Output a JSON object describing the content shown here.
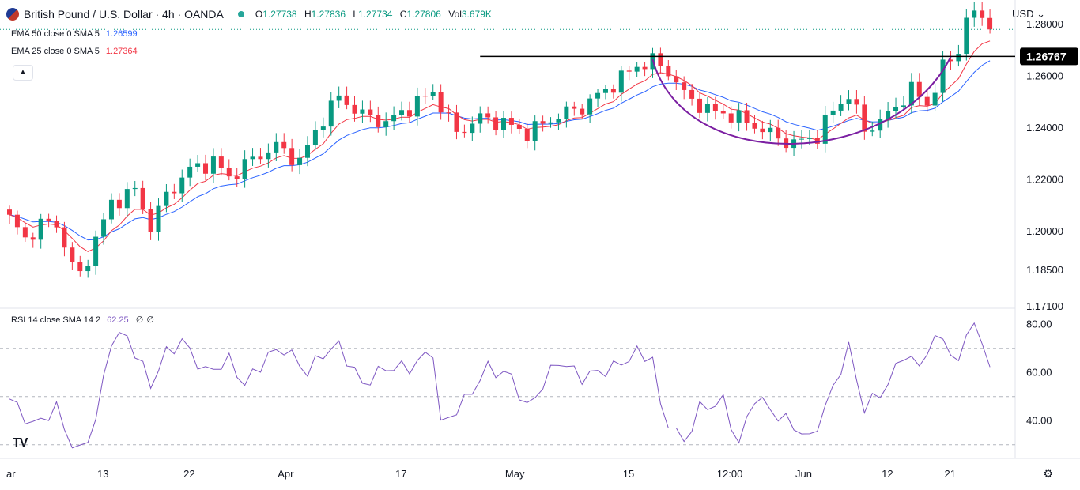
{
  "header": {
    "symbol_title": "British Pound / U.S. Dollar · 4h · OANDA",
    "ohlc": [
      {
        "label": "O",
        "value": "1.27738"
      },
      {
        "label": "H",
        "value": "1.27836"
      },
      {
        "label": "L",
        "value": "1.27734"
      },
      {
        "label": "C",
        "value": "1.27806"
      },
      {
        "label": "Vol",
        "value": "3.679K"
      }
    ],
    "currency": "USD"
  },
  "indicators": [
    {
      "label": "EMA 50 close 0 SMA 5",
      "value": "1.26599",
      "color": "#2962ff"
    },
    {
      "label": "EMA 25 close 0 SMA 5",
      "value": "1.27364",
      "color": "#f23645"
    }
  ],
  "rsi_legend": {
    "label": "RSI 14 close SMA 14 2",
    "value": "62.25",
    "extra1": "∅",
    "extra2": "∅"
  },
  "colors": {
    "up": "#089981",
    "down": "#f23645",
    "ema50": "#2962ff",
    "ema25": "#f23645",
    "rsi": "#7e57c2",
    "cup": "#7b1fa2"
  },
  "chart_data": [
    {
      "type": "candlestick",
      "ylim": [
        1.171,
        1.287
      ],
      "y_ticks": [
        "1.28000",
        "1.26000",
        "1.24000",
        "1.22000",
        "1.20000",
        "1.18500",
        "1.17100"
      ],
      "x_tick_labels": [
        "ar",
        "13",
        "22",
        "Apr",
        "17",
        "May",
        "15",
        "12:00",
        "Jun",
        "12",
        "21"
      ],
      "last_close": 1.27806,
      "resistance_level": "1.26767",
      "ema50_last": 1.26599,
      "ema25_last": 1.27364,
      "close_path": [
        [
          0,
          1.205
        ],
        [
          2,
          1.197
        ],
        [
          4,
          1.203
        ],
        [
          6,
          1.203
        ],
        [
          8,
          1.187
        ],
        [
          9,
          1.183
        ],
        [
          10,
          1.19
        ],
        [
          13,
          1.211
        ],
        [
          16,
          1.216
        ],
        [
          18,
          1.202
        ],
        [
          20,
          1.214
        ],
        [
          23,
          1.224
        ],
        [
          26,
          1.227
        ],
        [
          28,
          1.221
        ],
        [
          31,
          1.228
        ],
        [
          34,
          1.233
        ],
        [
          37,
          1.227
        ],
        [
          40,
          1.244
        ],
        [
          42,
          1.252
        ],
        [
          45,
          1.245
        ],
        [
          48,
          1.242
        ],
        [
          51,
          1.248
        ],
        [
          54,
          1.254
        ],
        [
          57,
          1.238
        ],
        [
          60,
          1.244
        ],
        [
          63,
          1.242
        ],
        [
          66,
          1.238
        ],
        [
          70,
          1.245
        ],
        [
          73,
          1.248
        ],
        [
          77,
          1.257
        ],
        [
          80,
          1.264
        ],
        [
          82,
          1.266
        ],
        [
          84,
          1.262
        ],
        [
          86,
          1.253
        ],
        [
          89,
          1.247
        ],
        [
          92,
          1.245
        ],
        [
          95,
          1.241
        ],
        [
          98,
          1.236
        ],
        [
          100,
          1.234
        ],
        [
          103,
          1.237
        ],
        [
          105,
          1.247
        ],
        [
          107,
          1.253
        ],
        [
          109,
          1.239
        ],
        [
          112,
          1.245
        ],
        [
          115,
          1.255
        ],
        [
          117,
          1.249
        ],
        [
          119,
          1.263
        ],
        [
          121,
          1.27
        ],
        [
          122,
          1.283
        ],
        [
          124,
          1.283
        ],
        [
          125,
          1.278
        ]
      ]
    },
    {
      "type": "line",
      "name": "RSI 14",
      "ylim": [
        25,
        85
      ],
      "y_ticks": [
        "80.00",
        "60.00",
        "40.00"
      ],
      "levels": [
        70,
        50,
        30
      ],
      "last_value": 62.25,
      "path": [
        [
          0,
          49
        ],
        [
          3,
          38
        ],
        [
          6,
          45
        ],
        [
          8,
          30
        ],
        [
          9,
          27
        ],
        [
          11,
          40
        ],
        [
          13,
          74
        ],
        [
          15,
          75
        ],
        [
          18,
          55
        ],
        [
          20,
          68
        ],
        [
          22,
          73
        ],
        [
          25,
          60
        ],
        [
          28,
          65
        ],
        [
          30,
          55
        ],
        [
          33,
          67
        ],
        [
          35,
          70
        ],
        [
          38,
          60
        ],
        [
          40,
          68
        ],
        [
          42,
          71
        ],
        [
          45,
          55
        ],
        [
          48,
          62
        ],
        [
          51,
          62
        ],
        [
          54,
          69
        ],
        [
          55,
          38
        ],
        [
          58,
          48
        ],
        [
          61,
          62
        ],
        [
          64,
          58
        ],
        [
          66,
          45
        ],
        [
          70,
          65
        ],
        [
          73,
          58
        ],
        [
          77,
          62
        ],
        [
          80,
          68
        ],
        [
          82,
          66
        ],
        [
          83,
          45
        ],
        [
          85,
          35
        ],
        [
          86,
          31
        ],
        [
          88,
          45
        ],
        [
          91,
          48
        ],
        [
          93,
          30
        ],
        [
          95,
          50
        ],
        [
          98,
          42
        ],
        [
          100,
          38
        ],
        [
          102,
          32
        ],
        [
          104,
          45
        ],
        [
          106,
          62
        ],
        [
          107,
          70
        ],
        [
          109,
          45
        ],
        [
          112,
          55
        ],
        [
          114,
          68
        ],
        [
          116,
          62
        ],
        [
          117,
          70
        ],
        [
          119,
          75
        ],
        [
          121,
          62
        ],
        [
          122,
          78
        ],
        [
          123,
          80
        ],
        [
          124,
          70
        ],
        [
          125,
          62
        ]
      ]
    }
  ]
}
